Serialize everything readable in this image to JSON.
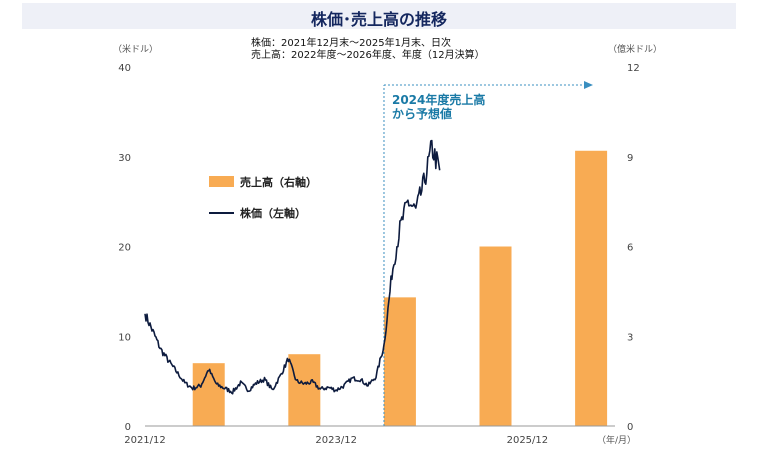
{
  "header": {
    "title": "株価･売上高の推移",
    "subtitle_line1": "株価：2021年12月末～2025年1月末、日次",
    "subtitle_line2": "売上高：2022年度～2026年度、年度（12月決算）"
  },
  "chart_data": {
    "type": "bar+line",
    "left_axis": {
      "unit": "（米ドル）",
      "ylim": [
        0,
        40
      ],
      "ticks": [
        0,
        10,
        20,
        30,
        40
      ]
    },
    "right_axis": {
      "unit": "（億米ドル）",
      "ylim": [
        0,
        12
      ],
      "ticks": [
        0,
        3,
        6,
        9,
        12
      ]
    },
    "x_axis": {
      "unit": "（年/月）",
      "tick_labels": [
        {
          "date": "2021-12",
          "label": "2021/12"
        },
        {
          "date": "2023-12",
          "label": "2023/12"
        },
        {
          "date": "2025-12",
          "label": "2025/12"
        }
      ],
      "xlim": [
        "2021-12",
        "2026-11"
      ]
    },
    "legend": {
      "placement": "upper-left",
      "bar_label": "売上高（右軸）",
      "line_label": "株価（左軸）"
    },
    "annotation": {
      "line1": "2024年度売上高",
      "line2": "から予想値",
      "x_date": "2024-06"
    },
    "bars": {
      "name": "売上高（右軸）",
      "axis": "right",
      "color": "#f8ab53",
      "categories": [
        "2022",
        "2023",
        "2024",
        "2025",
        "2026"
      ],
      "center_dates": [
        "2022-08",
        "2023-08",
        "2024-08",
        "2025-08",
        "2026-08"
      ],
      "values": [
        2.1,
        2.4,
        4.3,
        6.0,
        9.2
      ]
    },
    "line": {
      "name": "株価（左軸）",
      "axis": "left",
      "color": "#0d1b3e",
      "dates": [
        "2021-12",
        "2022-01",
        "2022-02",
        "2022-03",
        "2022-04",
        "2022-05",
        "2022-06",
        "2022-07",
        "2022-08",
        "2022-09",
        "2022-10",
        "2022-11",
        "2022-12",
        "2023-01",
        "2023-02",
        "2023-03",
        "2023-04",
        "2023-05",
        "2023-06",
        "2023-07",
        "2023-08",
        "2023-09",
        "2023-10",
        "2023-11",
        "2023-12",
        "2024-01",
        "2024-02",
        "2024-03",
        "2024-04",
        "2024-05",
        "2024-06",
        "2024-07",
        "2024-08",
        "2024-09",
        "2024-10",
        "2024-11",
        "2024-12",
        "2025-01"
      ],
      "values": [
        12.5,
        10.5,
        8.5,
        7.2,
        6.0,
        4.8,
        4.2,
        4.5,
        6.3,
        4.6,
        4.2,
        3.8,
        4.8,
        4.0,
        4.8,
        5.2,
        4.0,
        5.6,
        7.5,
        5.0,
        4.7,
        4.9,
        4.1,
        4.3,
        4.0,
        4.5,
        5.3,
        5.2,
        4.5,
        5.5,
        9.0,
        17.0,
        22.0,
        25.0,
        24.0,
        27.0,
        31.0,
        28.5
      ]
    }
  }
}
